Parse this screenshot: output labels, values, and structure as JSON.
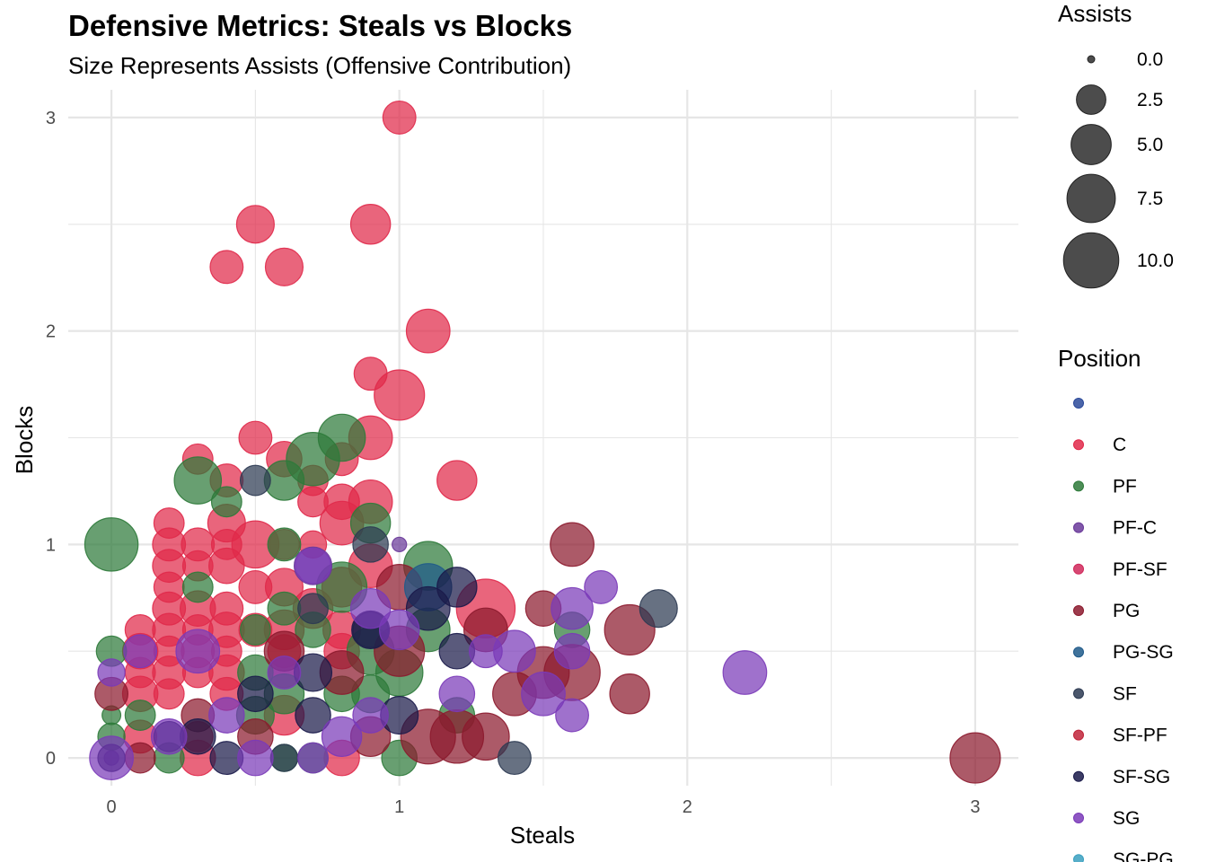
{
  "chart_data": {
    "type": "scatter",
    "title": "Defensive Metrics: Steals vs Blocks",
    "subtitle": "Size Represents Assists (Offensive Contribution)",
    "xlabel": "Steals",
    "ylabel": "Blocks",
    "xlim": [
      -0.15,
      3.15
    ],
    "ylim": [
      -0.13,
      3.13
    ],
    "x_ticks": [
      0,
      1,
      2,
      3
    ],
    "y_ticks": [
      0,
      1,
      2,
      3
    ],
    "grid": true,
    "size_legend": {
      "title": "Assists",
      "values": [
        0.0,
        2.5,
        5.0,
        7.5,
        10.0
      ],
      "labels": [
        "0.0",
        "2.5",
        "5.0",
        "7.5",
        "10.0"
      ]
    },
    "legend": {
      "title": "Position",
      "placement": "right",
      "entries": [
        {
          "label": "",
          "color": "#2c4a9a"
        },
        {
          "label": "C",
          "color": "#e0294a"
        },
        {
          "label": "PF",
          "color": "#2e7a3a"
        },
        {
          "label": "PF-C",
          "color": "#6a3a9a"
        },
        {
          "label": "PF-SF",
          "color": "#d0285a"
        },
        {
          "label": "PG",
          "color": "#8c1a2e"
        },
        {
          "label": "PG-SG",
          "color": "#1f5a8a"
        },
        {
          "label": "SF",
          "color": "#2c3a52"
        },
        {
          "label": "SF-PF",
          "color": "#c0253a"
        },
        {
          "label": "SF-SG",
          "color": "#1a1a4a"
        },
        {
          "label": "SG",
          "color": "#7a3ab8"
        },
        {
          "label": "SG-PG",
          "color": "#3aa0c0"
        }
      ]
    },
    "series": [
      {
        "position": "C",
        "points": [
          [
            1.0,
            3.0,
            2.5
          ],
          [
            0.5,
            2.5,
            3.5
          ],
          [
            0.9,
            2.5,
            4.0
          ],
          [
            0.4,
            2.3,
            2.5
          ],
          [
            0.6,
            2.3,
            3.5
          ],
          [
            1.1,
            2.0,
            5.0
          ],
          [
            0.9,
            1.8,
            2.5
          ],
          [
            1.0,
            1.7,
            7.0
          ],
          [
            0.5,
            1.5,
            2.5
          ],
          [
            0.9,
            1.5,
            5.0
          ],
          [
            0.6,
            1.4,
            3.0
          ],
          [
            0.3,
            1.4,
            2.0
          ],
          [
            0.8,
            1.4,
            2.5
          ],
          [
            0.7,
            1.3,
            2.0
          ],
          [
            1.2,
            1.3,
            4.0
          ],
          [
            0.4,
            1.3,
            2.5
          ],
          [
            0.8,
            1.2,
            3.0
          ],
          [
            0.9,
            1.2,
            5.0
          ],
          [
            0.7,
            1.2,
            2.0
          ],
          [
            0.2,
            1.1,
            2.0
          ],
          [
            0.4,
            1.1,
            3.5
          ],
          [
            0.8,
            1.1,
            5.0
          ],
          [
            0.2,
            1.0,
            2.5
          ],
          [
            0.3,
            1.0,
            2.5
          ],
          [
            0.4,
            1.0,
            2.0
          ],
          [
            0.5,
            1.0,
            6.0
          ],
          [
            0.6,
            1.0,
            2.0
          ],
          [
            0.7,
            1.0,
            1.5
          ],
          [
            0.2,
            0.9,
            2.5
          ],
          [
            0.3,
            0.9,
            2.0
          ],
          [
            0.4,
            0.9,
            3.0
          ],
          [
            0.9,
            0.9,
            5.0
          ],
          [
            0.2,
            0.8,
            2.0
          ],
          [
            0.5,
            0.8,
            2.5
          ],
          [
            0.6,
            0.8,
            3.5
          ],
          [
            0.8,
            0.8,
            4.0
          ],
          [
            0.2,
            0.7,
            2.5
          ],
          [
            0.3,
            0.7,
            3.0
          ],
          [
            0.4,
            0.7,
            2.5
          ],
          [
            0.7,
            0.7,
            4.0
          ],
          [
            1.3,
            0.7,
            10.0
          ],
          [
            0.1,
            0.6,
            2.0
          ],
          [
            0.2,
            0.6,
            2.5
          ],
          [
            0.3,
            0.6,
            2.0
          ],
          [
            0.4,
            0.6,
            3.0
          ],
          [
            0.5,
            0.6,
            2.5
          ],
          [
            0.6,
            0.6,
            4.0
          ],
          [
            0.8,
            0.6,
            3.5
          ],
          [
            0.1,
            0.5,
            3.0
          ],
          [
            0.2,
            0.5,
            2.0
          ],
          [
            0.3,
            0.5,
            2.5
          ],
          [
            0.4,
            0.5,
            2.0
          ],
          [
            0.6,
            0.5,
            2.5
          ],
          [
            0.8,
            0.5,
            3.0
          ],
          [
            0.1,
            0.4,
            2.0
          ],
          [
            0.2,
            0.4,
            2.5
          ],
          [
            0.3,
            0.4,
            2.0
          ],
          [
            0.4,
            0.4,
            3.0
          ],
          [
            0.6,
            0.4,
            2.0
          ],
          [
            0.1,
            0.3,
            3.0
          ],
          [
            0.2,
            0.3,
            2.0
          ],
          [
            0.4,
            0.3,
            2.5
          ],
          [
            0.6,
            0.2,
            4.0
          ],
          [
            0.3,
            0.1,
            2.0
          ],
          [
            0.1,
            0.1,
            2.5
          ],
          [
            0.3,
            0.0,
            3.0
          ],
          [
            0.8,
            0.0,
            3.0
          ]
        ]
      },
      {
        "position": "PF",
        "points": [
          [
            0.0,
            1.0,
            8.0
          ],
          [
            0.8,
            1.5,
            6.0
          ],
          [
            0.7,
            1.4,
            8.0
          ],
          [
            0.3,
            1.3,
            6.0
          ],
          [
            0.6,
            1.3,
            4.0
          ],
          [
            0.4,
            1.2,
            2.0
          ],
          [
            0.9,
            1.1,
            4.0
          ],
          [
            0.6,
            1.0,
            2.5
          ],
          [
            1.1,
            0.9,
            6.5
          ],
          [
            0.3,
            0.8,
            2.0
          ],
          [
            0.8,
            0.8,
            7.0
          ],
          [
            0.6,
            0.7,
            2.5
          ],
          [
            0.7,
            0.6,
            3.0
          ],
          [
            1.1,
            0.6,
            5.0
          ],
          [
            1.6,
            0.6,
            3.0
          ],
          [
            0.0,
            0.5,
            2.0
          ],
          [
            0.5,
            0.6,
            2.0
          ],
          [
            0.9,
            0.5,
            6.0
          ],
          [
            0.5,
            0.4,
            3.0
          ],
          [
            1.0,
            0.4,
            6.0
          ],
          [
            0.8,
            0.3,
            3.0
          ],
          [
            0.6,
            0.3,
            4.0
          ],
          [
            0.9,
            0.3,
            3.5
          ],
          [
            0.5,
            0.2,
            3.5
          ],
          [
            0.1,
            0.2,
            2.0
          ],
          [
            1.2,
            0.2,
            3.0
          ],
          [
            0.0,
            0.1,
            1.5
          ],
          [
            0.2,
            0.0,
            2.0
          ],
          [
            0.6,
            0.0,
            1.5
          ],
          [
            1.0,
            0.0,
            3.0
          ],
          [
            0.7,
            0.0,
            2.0
          ],
          [
            0.0,
            0.2,
            0.5
          ]
        ]
      },
      {
        "position": "PF-C",
        "points": [
          [
            0.7,
            0.9,
            3.5
          ],
          [
            1.0,
            1.0,
            0.2
          ],
          [
            0.0,
            0.0,
            0.2
          ]
        ]
      },
      {
        "position": "PG",
        "points": [
          [
            1.6,
            1.0,
            5.0
          ],
          [
            1.8,
            0.6,
            7.0
          ],
          [
            1.5,
            0.7,
            3.0
          ],
          [
            1.6,
            0.4,
            9.0
          ],
          [
            1.5,
            0.4,
            7.5
          ],
          [
            1.4,
            0.3,
            5.0
          ],
          [
            1.3,
            0.1,
            6.0
          ],
          [
            1.2,
            0.1,
            8.0
          ],
          [
            1.1,
            0.1,
            8.5
          ],
          [
            1.3,
            0.6,
            5.0
          ],
          [
            1.8,
            0.3,
            4.0
          ],
          [
            3.0,
            0.0,
            7.0
          ],
          [
            1.0,
            0.5,
            7.0
          ],
          [
            1.0,
            0.8,
            5.5
          ],
          [
            0.8,
            0.4,
            5.0
          ],
          [
            0.9,
            0.1,
            4.0
          ],
          [
            0.5,
            0.1,
            3.0
          ],
          [
            0.3,
            0.2,
            2.5
          ],
          [
            0.0,
            0.3,
            2.5
          ],
          [
            0.1,
            0.0,
            2.0
          ],
          [
            0.6,
            0.5,
            4.0
          ]
        ]
      },
      {
        "position": "PG-SG",
        "points": [
          [
            1.1,
            0.8,
            6.0
          ]
        ]
      },
      {
        "position": "SF",
        "points": [
          [
            1.9,
            0.7,
            3.5
          ],
          [
            1.4,
            0.0,
            2.5
          ],
          [
            0.9,
            1.0,
            3.0
          ],
          [
            0.5,
            1.3,
            2.0
          ],
          [
            0.6,
            0.0,
            1.5
          ],
          [
            0.9,
            0.6,
            3.0
          ],
          [
            0.7,
            0.7,
            2.0
          ]
        ]
      },
      {
        "position": "SF-SG",
        "points": [
          [
            1.2,
            0.8,
            4.0
          ],
          [
            1.1,
            0.7,
            5.0
          ],
          [
            1.2,
            0.5,
            3.0
          ],
          [
            1.0,
            0.2,
            3.5
          ],
          [
            0.7,
            0.4,
            3.5
          ],
          [
            0.5,
            0.3,
            3.0
          ],
          [
            0.3,
            0.1,
            3.0
          ],
          [
            0.4,
            0.0,
            2.5
          ],
          [
            0.2,
            0.1,
            2.0
          ],
          [
            0.0,
            0.0,
            1.5
          ],
          [
            0.9,
            0.6,
            3.5
          ],
          [
            0.7,
            0.2,
            3.0
          ]
        ]
      },
      {
        "position": "SG",
        "points": [
          [
            2.2,
            0.4,
            5.0
          ],
          [
            1.6,
            0.7,
            4.5
          ],
          [
            1.7,
            0.8,
            2.5
          ],
          [
            1.6,
            0.5,
            3.0
          ],
          [
            1.6,
            0.2,
            2.5
          ],
          [
            1.5,
            0.3,
            5.0
          ],
          [
            1.4,
            0.5,
            4.5
          ],
          [
            1.3,
            0.5,
            2.5
          ],
          [
            1.2,
            0.3,
            3.0
          ],
          [
            1.0,
            0.6,
            4.0
          ],
          [
            0.9,
            0.7,
            4.0
          ],
          [
            0.7,
            0.9,
            3.0
          ],
          [
            0.6,
            0.4,
            2.5
          ],
          [
            0.3,
            0.5,
            5.0
          ],
          [
            0.1,
            0.5,
            2.5
          ],
          [
            0.0,
            0.4,
            1.5
          ],
          [
            0.0,
            0.0,
            5.0
          ],
          [
            0.2,
            0.1,
            3.0
          ],
          [
            0.4,
            0.2,
            3.0
          ],
          [
            0.5,
            0.0,
            3.0
          ],
          [
            0.7,
            0.0,
            2.0
          ],
          [
            0.9,
            0.2,
            3.0
          ],
          [
            0.8,
            0.1,
            4.0
          ]
        ]
      }
    ]
  }
}
